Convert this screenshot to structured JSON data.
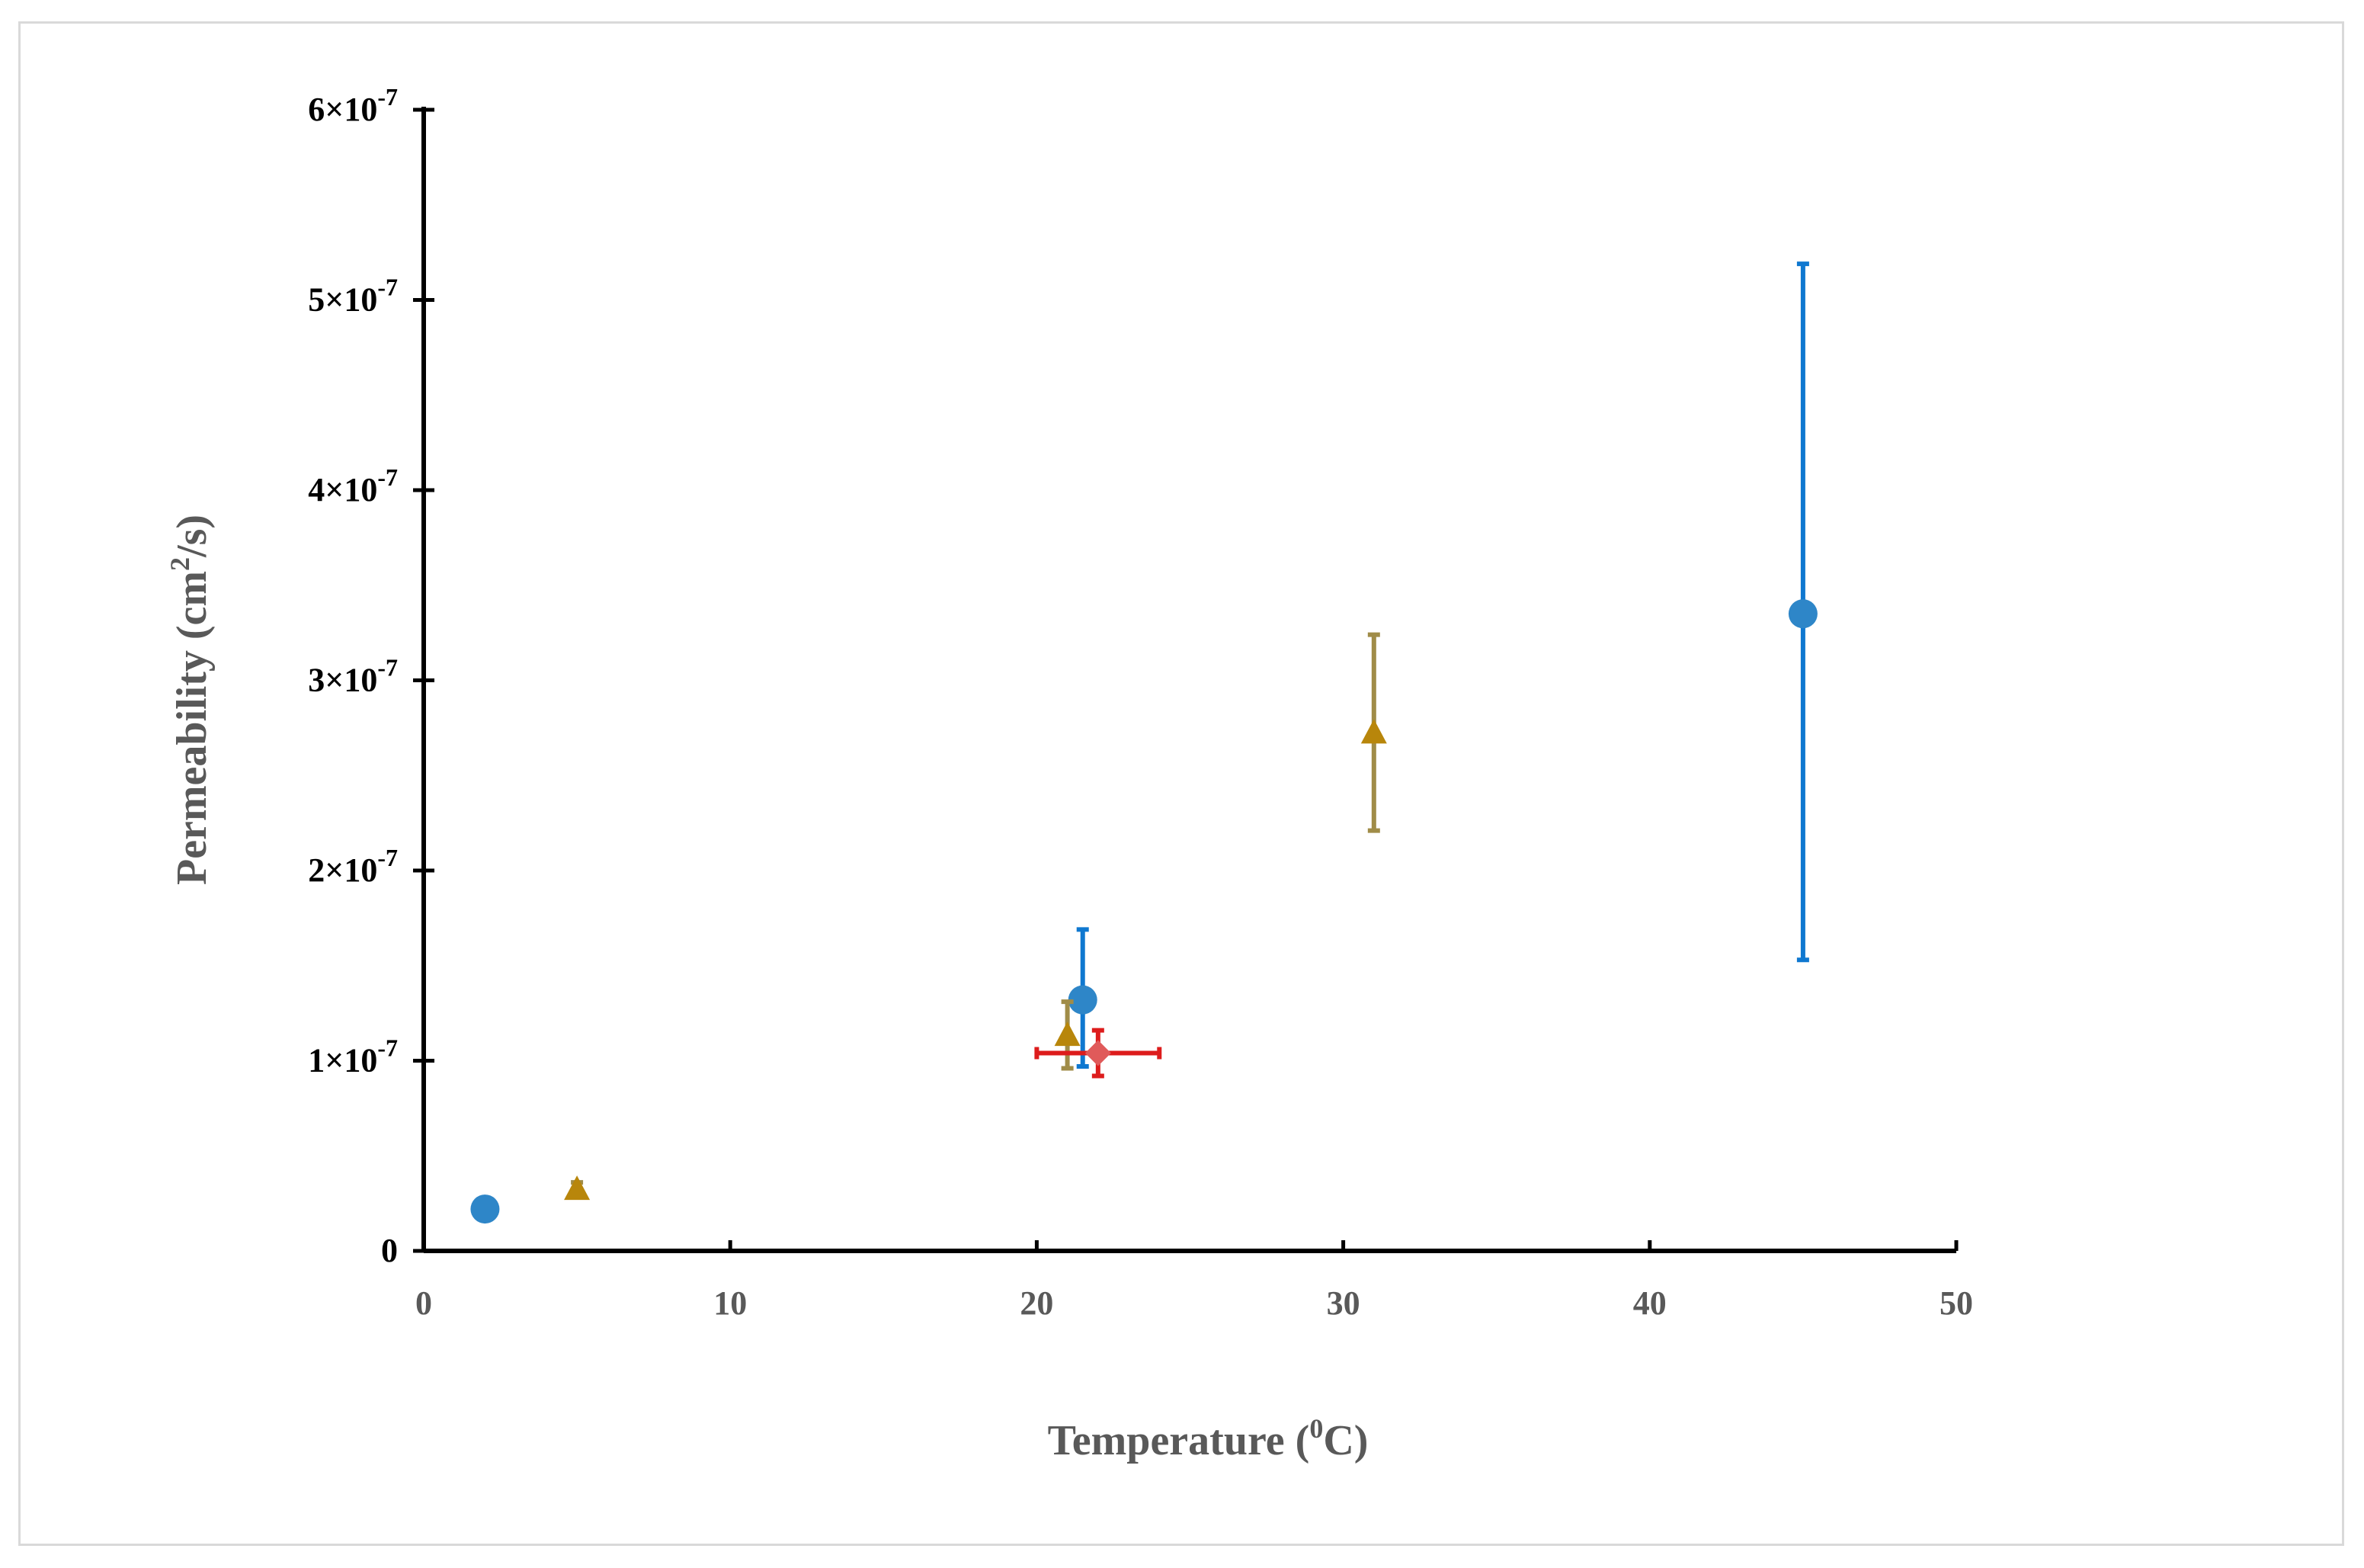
{
  "chart_data": {
    "type": "scatter",
    "title": "",
    "xlabel": {
      "main": "Temperature (",
      "sup": "0",
      "tail": "C)"
    },
    "ylabel": {
      "main": "Permeability (cm",
      "sup": "2",
      "tail": "/s)"
    },
    "xlim": [
      0,
      50
    ],
    "ylim": [
      0,
      6e-07
    ],
    "x_ticks": [
      {
        "value": 0,
        "label": "0"
      },
      {
        "value": 10,
        "label": "10"
      },
      {
        "value": 20,
        "label": "20"
      },
      {
        "value": 30,
        "label": "30"
      },
      {
        "value": 40,
        "label": "40"
      },
      {
        "value": 50,
        "label": "50"
      }
    ],
    "y_ticks": [
      {
        "value": 0,
        "mant": "0",
        "exp": ""
      },
      {
        "value": 1e-07,
        "mant": "1×10",
        "exp": "-7"
      },
      {
        "value": 2e-07,
        "mant": "2×10",
        "exp": "-7"
      },
      {
        "value": 3e-07,
        "mant": "3×10",
        "exp": "-7"
      },
      {
        "value": 4e-07,
        "mant": "4×10",
        "exp": "-7"
      },
      {
        "value": 5e-07,
        "mant": "5×10",
        "exp": "-7"
      },
      {
        "value": 6e-07,
        "mant": "6×10",
        "exp": "-7"
      }
    ],
    "grid": false,
    "legend": "none",
    "series": [
      {
        "marker": "circle",
        "color": "#2e86c8",
        "error_color": "#0f78d0",
        "points": [
          {
            "x": 2,
            "y": 2.2e-08
          },
          {
            "x": 21.5,
            "y": 1.32e-07,
            "y_low": 9.7e-08,
            "y_high": 1.69e-07
          },
          {
            "x": 45,
            "y": 3.35e-07,
            "y_low": 1.53e-07,
            "y_high": 5.19e-07
          }
        ]
      },
      {
        "marker": "triangle",
        "color": "#b8860b",
        "error_color": "#a08c48",
        "points": [
          {
            "x": 5,
            "y": 3.2e-08,
            "y_low": 2.9e-08,
            "y_high": 3.6e-08
          },
          {
            "x": 21,
            "y": 1.13e-07,
            "y_low": 9.6e-08,
            "y_high": 1.31e-07
          },
          {
            "x": 31,
            "y": 2.72e-07,
            "y_low": 2.21e-07,
            "y_high": 3.24e-07
          }
        ]
      },
      {
        "marker": "diamond",
        "color": "#e05a5a",
        "error_color": "#dd1c1c",
        "points": [
          {
            "x": 22,
            "y": 1.04e-07,
            "y_low": 9.2e-08,
            "y_high": 1.16e-07,
            "x_low": 20,
            "x_high": 24
          }
        ]
      }
    ]
  }
}
